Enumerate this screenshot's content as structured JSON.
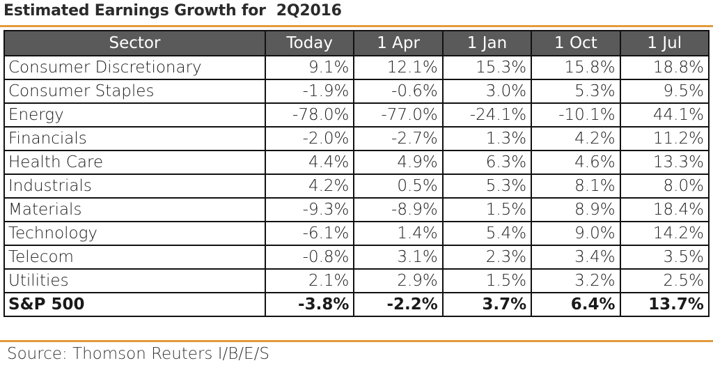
{
  "title": "Estimated Earnings Growth for  2Q2016",
  "source": "Source: Thomson Reuters I/B/E/S",
  "colors": {
    "header_bg": "#5a5a5a",
    "accent_rule": "#e29a3a"
  },
  "chart_data": {
    "type": "table",
    "title": "Estimated Earnings Growth for  2Q2016",
    "columns": [
      "Sector",
      "Today",
      "1 Apr",
      "1 Jan",
      "1 Oct",
      "1 Jul"
    ],
    "rows": [
      {
        "sector": "Consumer Discretionary",
        "values": [
          "9.1%",
          "12.1%",
          "15.3%",
          "15.8%",
          "18.8%"
        ]
      },
      {
        "sector": "Consumer Staples",
        "values": [
          "-1.9%",
          "-0.6%",
          "3.0%",
          "5.3%",
          "9.5%"
        ]
      },
      {
        "sector": "Energy",
        "values": [
          "-78.0%",
          "-77.0%",
          "-24.1%",
          "-10.1%",
          "44.1%"
        ]
      },
      {
        "sector": "Financials",
        "values": [
          "-2.0%",
          "-2.7%",
          "1.3%",
          "4.2%",
          "11.2%"
        ]
      },
      {
        "sector": "Health Care",
        "values": [
          "4.4%",
          "4.9%",
          "6.3%",
          "4.6%",
          "13.3%"
        ]
      },
      {
        "sector": "Industrials",
        "values": [
          "4.2%",
          "0.5%",
          "5.3%",
          "8.1%",
          "8.0%"
        ]
      },
      {
        "sector": "Materials",
        "values": [
          "-9.3%",
          "-8.9%",
          "1.5%",
          "8.9%",
          "18.4%"
        ]
      },
      {
        "sector": "Technology",
        "values": [
          "-6.1%",
          "1.4%",
          "5.4%",
          "9.0%",
          "14.2%"
        ]
      },
      {
        "sector": "Telecom",
        "values": [
          "-0.8%",
          "3.1%",
          "2.3%",
          "3.4%",
          "3.5%"
        ]
      },
      {
        "sector": "Utilities",
        "values": [
          "2.1%",
          "2.9%",
          "1.5%",
          "3.2%",
          "2.5%"
        ]
      },
      {
        "sector": "S&P 500",
        "values": [
          "-3.8%",
          "-2.2%",
          "3.7%",
          "6.4%",
          "13.7%"
        ],
        "total": true
      }
    ]
  }
}
